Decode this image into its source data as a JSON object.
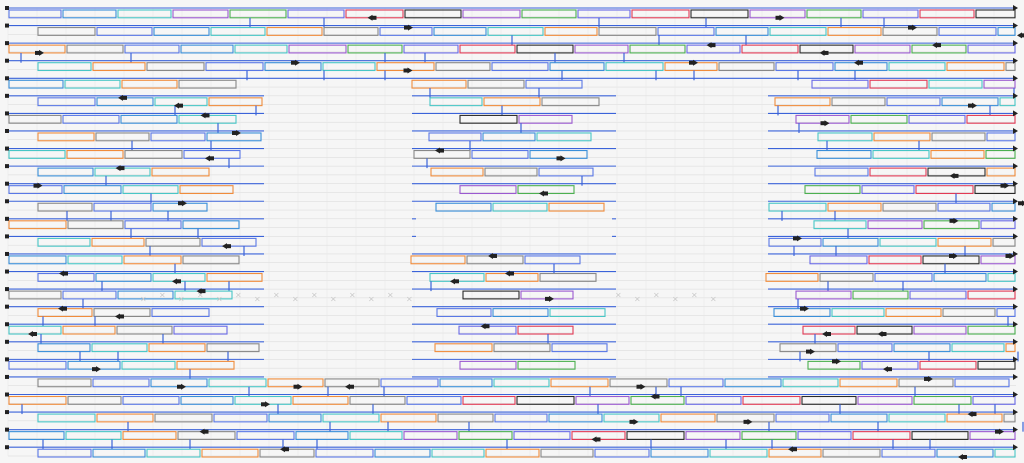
{
  "diagram": {
    "kind": "dna-origami-style strand routing view",
    "palette": [
      "#5a78e6",
      "#9b59d0",
      "#f08c3c",
      "#e23a55",
      "#3a8fd9",
      "#4cb050",
      "#888888",
      "#2a2a2a",
      "#48c6c6",
      "#6a6ae6"
    ],
    "helix_rail_color": "#3b63d9",
    "crossover_color": "#3b63d9",
    "background_color": "#f6f6f6",
    "grid_color": "#d8d8d8",
    "end_marker_color": "#222222",
    "icons": [
      "end-square-icon",
      "end-arrow-icon"
    ]
  }
}
